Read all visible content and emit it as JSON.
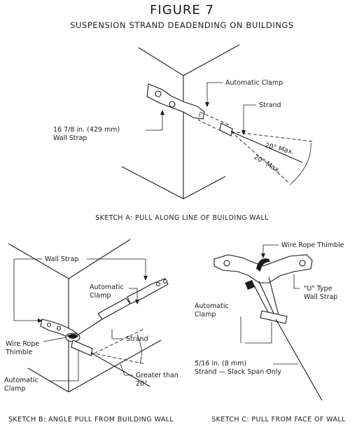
{
  "figure": {
    "title": "FIGURE 7",
    "subtitle": "SUSPENSION STRAND DEADENDING ON BUILDINGS"
  },
  "sketch_a": {
    "caption": "SKETCH A:  PULL ALONG LINE OF BUILDING WALL",
    "labels": {
      "automatic_clamp": "Automatic Clamp",
      "strand": "Strand",
      "wall_strap_line1": "16 7/8 in. (429 mm)",
      "wall_strap_line2": "Wall Strap",
      "angle_upper": "20° Max.",
      "angle_lower": "20° Max."
    }
  },
  "sketch_b": {
    "caption": "SKETCH B:  ANGLE PULL FROM BUILDING WALL",
    "labels": {
      "wall_strap": "Wall Strap",
      "automatic_clamp_line1": "Automatic",
      "automatic_clamp_line2": "Clamp",
      "strand": "Strand",
      "wire_rope_thimble_line1": "Wire Rope",
      "wire_rope_thimble_line2": "Thimble",
      "automatic_clamp2_line1": "Automatic",
      "automatic_clamp2_line2": "Clamp",
      "greater_than_line1": "Greater than",
      "greater_than_line2": "20°"
    }
  },
  "sketch_c": {
    "caption": "SKETCH C:  PULL FROM FACE OF WALL",
    "labels": {
      "wire_rope_thimble": "Wire Rope Thimble",
      "u_type_line1": "\"U\" Type",
      "u_type_line2": "Wall Strap",
      "automatic_clamp_line1": "Automatic",
      "automatic_clamp_line2": "Clamp",
      "strand_line1": "5/16 in. (8 mm)",
      "strand_line2": "Strand — Slack Span Only"
    }
  }
}
